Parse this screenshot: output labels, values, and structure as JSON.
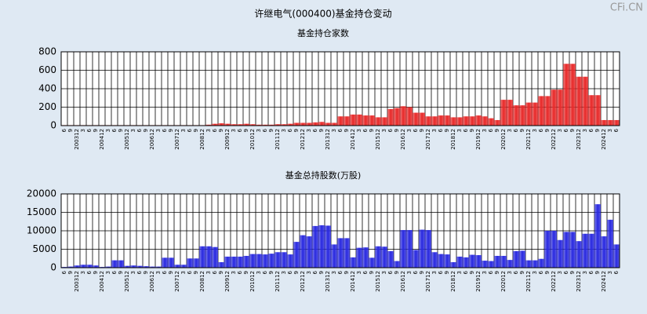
{
  "title": "许继电气(000400)基金持仓变动",
  "watermark": "CFi.CN",
  "chart_data": [
    {
      "type": "bar",
      "title": "基金持仓家数",
      "ylim": [
        0,
        800
      ],
      "yticks": [
        0,
        200,
        400,
        600,
        800
      ],
      "grid": true,
      "color": "#e82828",
      "categories": [
        "6",
        "9",
        "200312",
        "3",
        "6",
        "9",
        "200412",
        "3",
        "6",
        "9",
        "200512",
        "3",
        "6",
        "9",
        "200612",
        "3",
        "6",
        "9",
        "200712",
        "3",
        "6",
        "9",
        "200812",
        "3",
        "6",
        "9",
        "200912",
        "3",
        "6",
        "9",
        "201012",
        "3",
        "6",
        "9",
        "201112",
        "3",
        "6",
        "9",
        "201212",
        "3",
        "6",
        "9",
        "201312",
        "3",
        "6",
        "9",
        "201412",
        "3",
        "6",
        "9",
        "201512",
        "3",
        "6",
        "9",
        "201612",
        "3",
        "6",
        "9",
        "201712",
        "3",
        "6",
        "9",
        "201812",
        "3",
        "6",
        "9",
        "201912",
        "3",
        "6",
        "9",
        "202012",
        "3",
        "6",
        "9",
        "202112",
        "3",
        "6",
        "9",
        "202212",
        "3",
        "6",
        "9",
        "202312",
        "3",
        "6",
        "9",
        "202412",
        "3",
        "6"
      ],
      "values": [
        5,
        5,
        5,
        5,
        5,
        5,
        5,
        5,
        5,
        5,
        5,
        5,
        5,
        5,
        5,
        5,
        5,
        5,
        5,
        5,
        5,
        5,
        5,
        10,
        20,
        25,
        20,
        15,
        15,
        20,
        15,
        10,
        10,
        10,
        15,
        15,
        20,
        30,
        30,
        30,
        35,
        40,
        30,
        30,
        100,
        100,
        120,
        120,
        110,
        110,
        90,
        90,
        180,
        190,
        210,
        200,
        140,
        140,
        100,
        100,
        110,
        110,
        90,
        90,
        100,
        100,
        110,
        100,
        80,
        60,
        280,
        280,
        220,
        220,
        250,
        250,
        320,
        320,
        390,
        390,
        670,
        670,
        530,
        530,
        330,
        330,
        60,
        60,
        60
      ]
    },
    {
      "type": "bar",
      "title": "基金总持股数(万股)",
      "ylim": [
        0,
        20000
      ],
      "yticks": [
        0,
        5000,
        10000,
        15000,
        20000
      ],
      "grid": true,
      "color": "#2828e0",
      "categories": [
        "6",
        "9",
        "200312",
        "3",
        "6",
        "9",
        "200412",
        "3",
        "6",
        "9",
        "200512",
        "3",
        "6",
        "9",
        "200612",
        "3",
        "6",
        "9",
        "200712",
        "3",
        "6",
        "9",
        "200812",
        "3",
        "6",
        "9",
        "200912",
        "3",
        "6",
        "9",
        "201012",
        "3",
        "6",
        "9",
        "201112",
        "3",
        "6",
        "9",
        "201212",
        "3",
        "6",
        "9",
        "201312",
        "3",
        "6",
        "9",
        "201412",
        "3",
        "6",
        "9",
        "201512",
        "3",
        "6",
        "9",
        "201612",
        "3",
        "6",
        "9",
        "201712",
        "3",
        "6",
        "9",
        "201812",
        "3",
        "6",
        "9",
        "201912",
        "3",
        "6",
        "9",
        "202012",
        "3",
        "6",
        "9",
        "202112",
        "3",
        "6",
        "9",
        "202212",
        "3",
        "6",
        "9",
        "202312",
        "3",
        "6",
        "9",
        "202412",
        "3",
        "6"
      ],
      "values": [
        200,
        300,
        600,
        800,
        800,
        600,
        200,
        300,
        2000,
        2000,
        500,
        600,
        500,
        400,
        300,
        300,
        2700,
        2700,
        800,
        800,
        2500,
        2500,
        5800,
        5800,
        5600,
        1500,
        3000,
        3000,
        3000,
        3200,
        3700,
        3700,
        3600,
        3800,
        4200,
        4200,
        3600,
        7000,
        8800,
        8500,
        11300,
        11500,
        11400,
        6300,
        8000,
        8000,
        2800,
        5400,
        5500,
        2700,
        5800,
        5700,
        4500,
        1800,
        10200,
        10200,
        4800,
        10300,
        10200,
        4200,
        3700,
        3600,
        1500,
        3000,
        2800,
        3500,
        3400,
        1900,
        1800,
        3200,
        3200,
        2100,
        4500,
        4600,
        2000,
        2000,
        2400,
        10000,
        10000,
        7500,
        9700,
        9700,
        7200,
        9200,
        9200,
        17200,
        8500,
        13000,
        6300
      ]
    }
  ]
}
